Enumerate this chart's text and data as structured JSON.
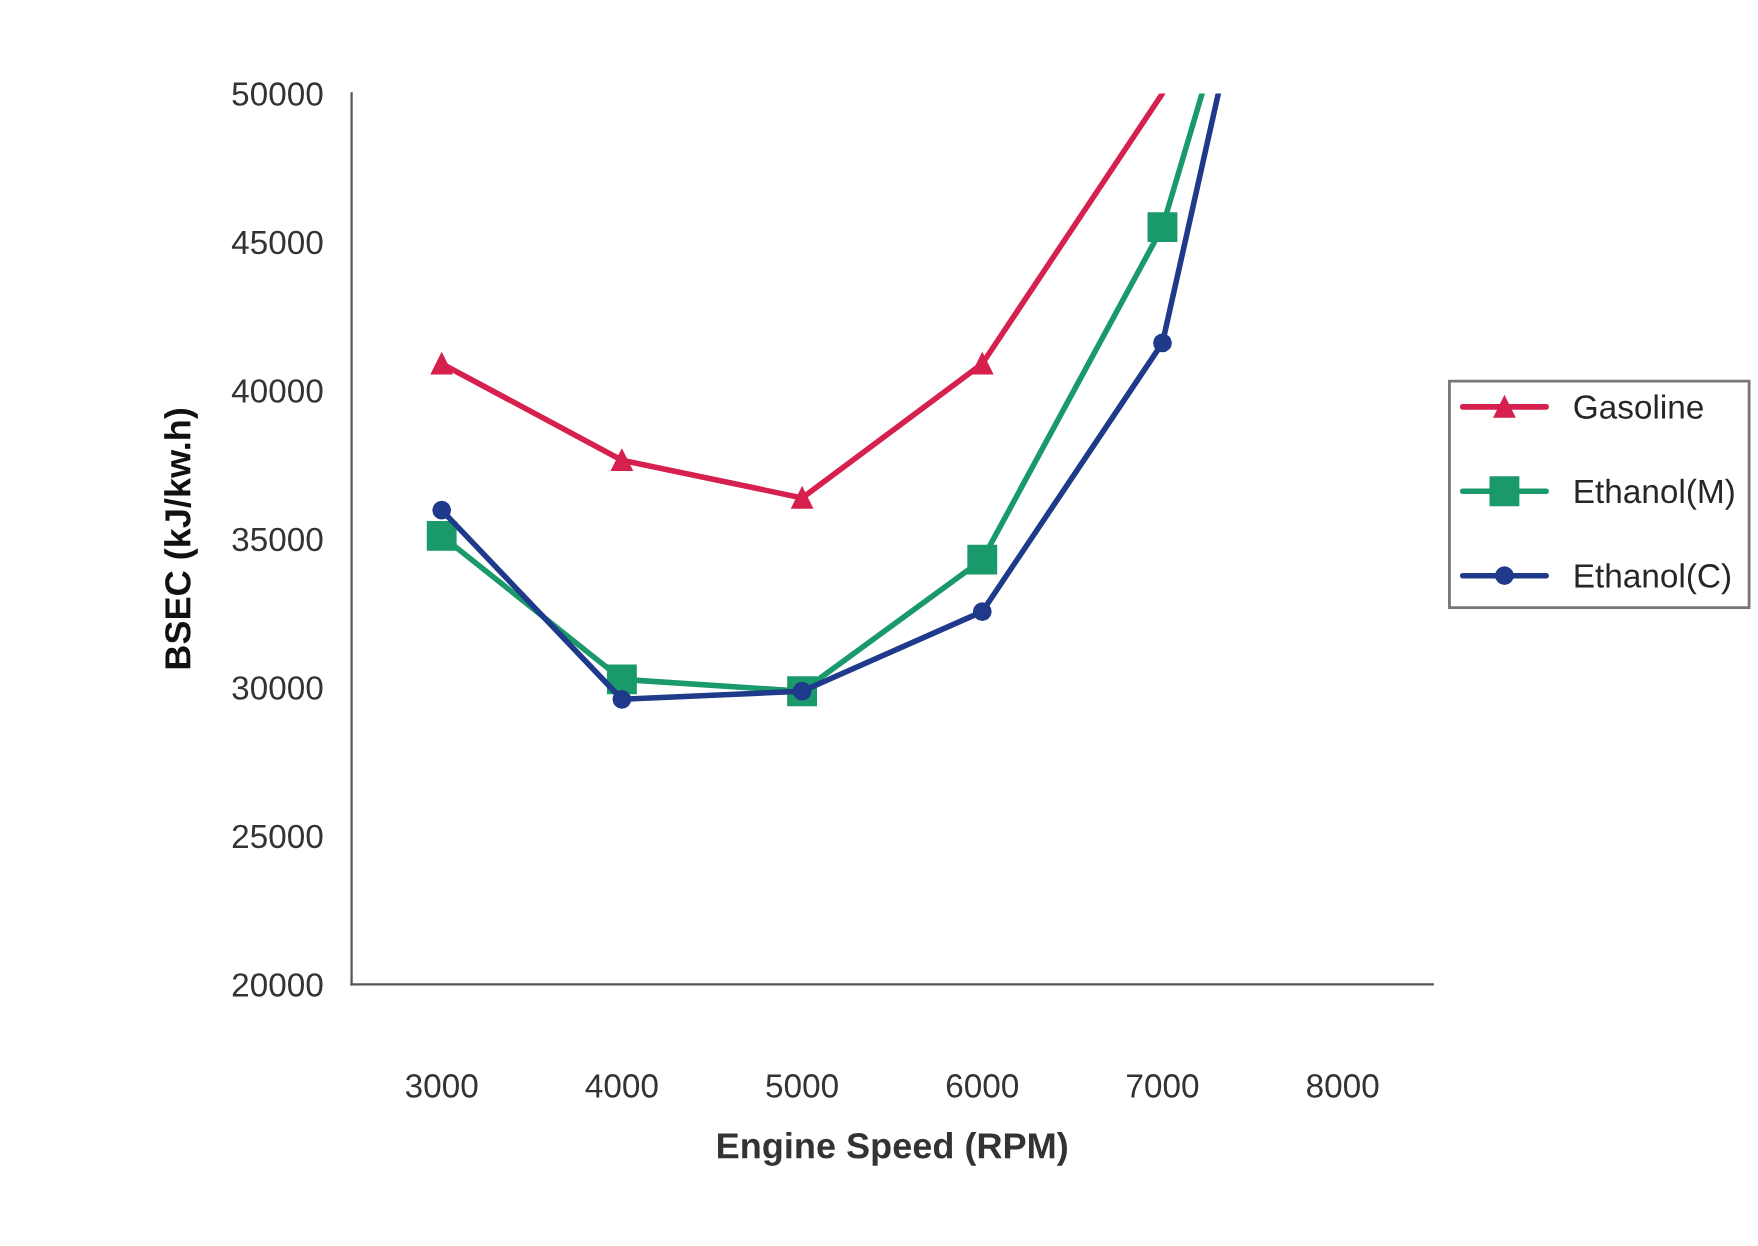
{
  "chart_data": {
    "type": "line",
    "xlabel": "Engine Speed (RPM)",
    "ylabel": "BSEC (kJ/kw.h)",
    "xlim": [
      2500,
      8500
    ],
    "xticks": [
      3000,
      4000,
      5000,
      6000,
      7000,
      8000
    ],
    "ylim": [
      20000,
      50000
    ],
    "yticks": [
      20000,
      25000,
      30000,
      35000,
      40000,
      45000,
      50000
    ],
    "grid": false,
    "legend": "right",
    "line_style": "solid",
    "series": [
      {
        "name": "Gasoline",
        "color": "#d6204e",
        "marker": "triangle",
        "x": [
          3000,
          4000,
          5000,
          6000,
          7000
        ],
        "values": [
          40900,
          37650,
          36380,
          40900,
          50000
        ]
      },
      {
        "name": "Ethanol(M)",
        "color": "#1a9a6a",
        "marker": "square",
        "x": [
          3000,
          4000,
          5000,
          6000,
          7000,
          7220
        ],
        "values": [
          35100,
          30270,
          29870,
          34300,
          45500,
          50000
        ]
      },
      {
        "name": "Ethanol(C)",
        "color": "#1f3a8a",
        "marker": "circle",
        "x": [
          3000,
          4000,
          5000,
          6000,
          7000,
          7310
        ],
        "values": [
          35970,
          29600,
          29870,
          32550,
          41600,
          50000
        ]
      }
    ]
  }
}
